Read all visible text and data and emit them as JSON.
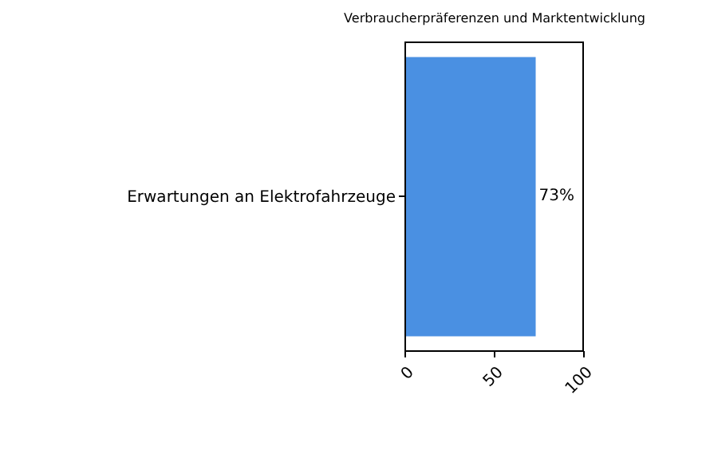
{
  "chart_data": {
    "type": "bar",
    "orientation": "horizontal",
    "title": "Verbraucherpräferenzen und Marktentwicklung",
    "categories": [
      "Erwartungen an Elektrofahrzeuge"
    ],
    "values": [
      73
    ],
    "value_labels": [
      "73%"
    ],
    "color": "#4a90e2",
    "xlim": [
      0,
      100
    ],
    "xticks": [
      0,
      50,
      100
    ],
    "grid": false
  }
}
